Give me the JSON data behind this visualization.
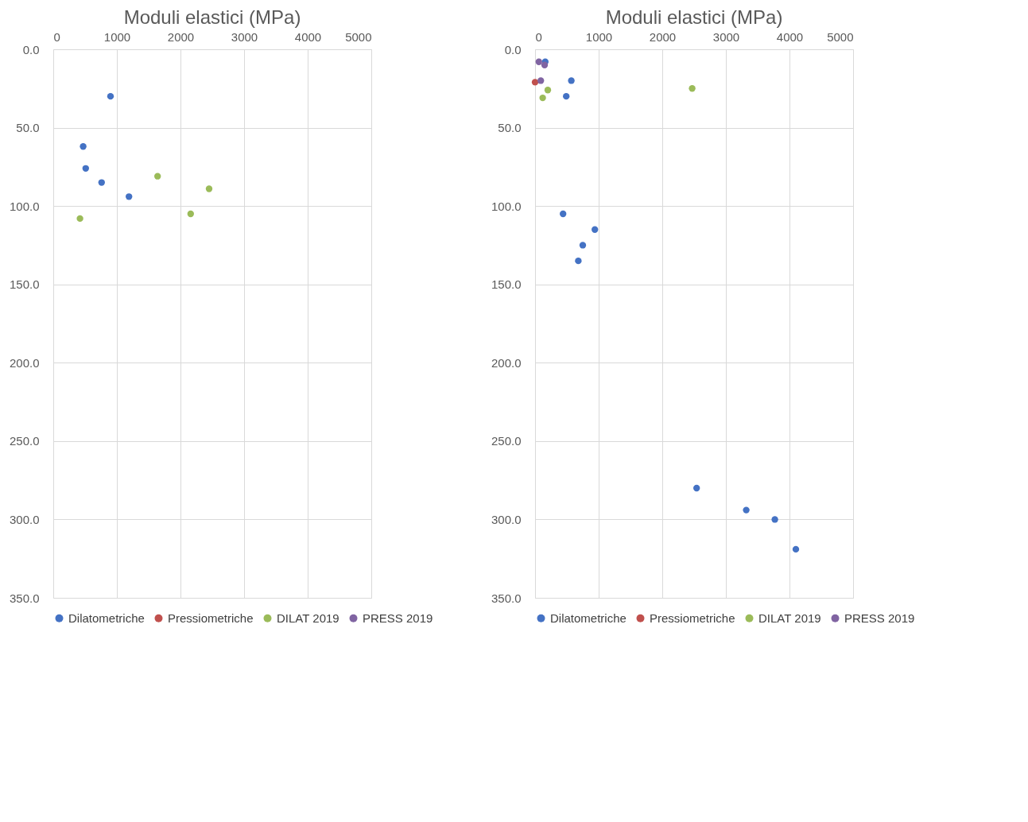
{
  "chart_data": [
    {
      "type": "scatter",
      "title": "Moduli elastici (MPa)",
      "xlim": [
        0,
        5000
      ],
      "xticks": [
        0,
        1000,
        2000,
        3000,
        4000,
        5000
      ],
      "ylim": [
        350,
        0
      ],
      "yticks": [
        {
          "value": 0,
          "label": "0.0"
        },
        {
          "value": 50,
          "label": "50.0"
        },
        {
          "value": 100,
          "label": "100.0"
        },
        {
          "value": 150,
          "label": "150.0"
        },
        {
          "value": 200,
          "label": "200.0"
        },
        {
          "value": 250,
          "label": "250.0"
        },
        {
          "value": 300,
          "label": "300.0"
        },
        {
          "value": 350,
          "label": "350.0"
        }
      ],
      "grid": true,
      "legend": "bottom",
      "marker": "circle",
      "series": [
        {
          "name": "Dilatometriche",
          "color": "#4472c4",
          "x": [
            900,
            470,
            510,
            760,
            1190
          ],
          "values": [
            30,
            62,
            76,
            85,
            94
          ]
        },
        {
          "name": "Pressiometriche",
          "color": "#c0504d"
        },
        {
          "name": "DILAT 2019",
          "color": "#9bbb59",
          "x": [
            1640,
            2450,
            2160,
            420
          ],
          "values": [
            81,
            89,
            105,
            108
          ]
        },
        {
          "name": "PRESS 2019",
          "color": "#8064a2"
        }
      ]
    },
    {
      "type": "scatter",
      "title": "Moduli elastici (MPa)",
      "xlim": [
        0,
        5000
      ],
      "xticks": [
        0,
        1000,
        2000,
        3000,
        4000,
        5000
      ],
      "ylim": [
        350,
        0
      ],
      "yticks": [
        {
          "value": 0,
          "label": "0.0"
        },
        {
          "value": 50,
          "label": "50.0"
        },
        {
          "value": 100,
          "label": "100.0"
        },
        {
          "value": 150,
          "label": "150.0"
        },
        {
          "value": 200,
          "label": "200.0"
        },
        {
          "value": 250,
          "label": "250.0"
        },
        {
          "value": 300,
          "label": "300.0"
        },
        {
          "value": 350,
          "label": "350.0"
        }
      ],
      "grid": true,
      "legend": "bottom",
      "marker": "circle",
      "series": [
        {
          "name": "Dilatometriche",
          "color": "#4472c4",
          "x": [
            160,
            570,
            490,
            440,
            940,
            750,
            680,
            2540,
            3320,
            3770,
            4100
          ],
          "values": [
            8,
            20,
            30,
            105,
            115,
            125,
            135,
            280,
            294,
            300,
            319
          ]
        },
        {
          "name": "Pressiometriche",
          "color": "#c0504d",
          "x": [
            0
          ],
          "values": [
            21
          ]
        },
        {
          "name": "DILAT 2019",
          "color": "#9bbb59",
          "x": [
            2470,
            200,
            120
          ],
          "values": [
            25,
            26,
            31
          ]
        },
        {
          "name": "PRESS 2019",
          "color": "#8064a2",
          "x": [
            60,
            150,
            90
          ],
          "values": [
            8,
            10,
            20
          ]
        }
      ]
    }
  ]
}
